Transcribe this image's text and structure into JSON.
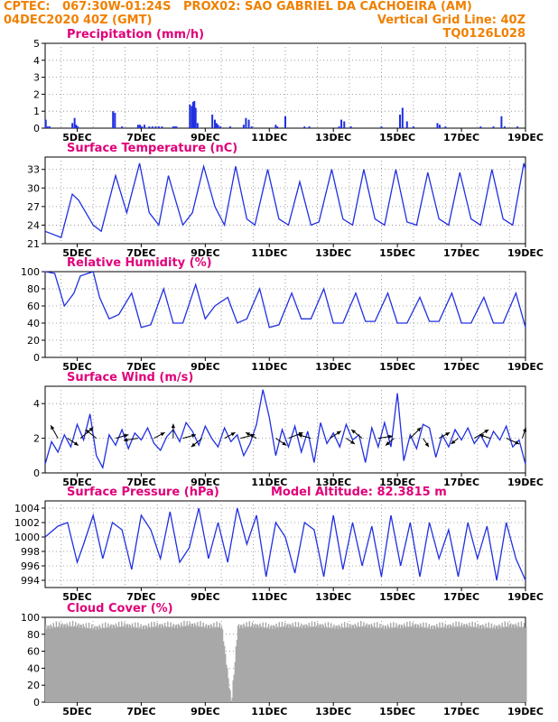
{
  "header": {
    "line1_left": "CPTEC:   067:30W-01:24S   PROX02: SAO GABRIEL DA CACHOEIRA (AM)",
    "line2_left": "04DEC2020 40Z (GMT)",
    "line2_right": "Vertical Grid Line: 40Z",
    "line3_right": "TQ0126L028"
  },
  "colors": {
    "header": "#f08000",
    "title": "#e0007a",
    "line": "#2030e0",
    "bar": "#2030e0",
    "cloud": "#a8a8a8",
    "grid": "#888888"
  },
  "x_tick_labels": [
    "5DEC",
    "7DEC",
    "9DEC",
    "11DEC",
    "13DEC",
    "15DEC",
    "17DEC",
    "19DEC"
  ],
  "chart_data": [
    {
      "type": "bar",
      "title": "Precipitation (mm/h)",
      "ylim": [
        0,
        5
      ],
      "yticks": [
        0,
        1,
        2,
        3,
        4,
        5
      ],
      "x_range_days": [
        4.0,
        19.0
      ],
      "x": [
        4.02,
        4.08,
        4.14,
        4.85,
        4.92,
        4.97,
        5.02,
        6.12,
        6.18,
        6.4,
        6.9,
        6.96,
        7.02,
        7.1,
        7.25,
        7.35,
        7.45,
        7.55,
        7.65,
        8.0,
        8.05,
        8.1,
        8.52,
        8.58,
        8.62,
        8.66,
        8.7,
        8.76,
        9.22,
        9.3,
        9.35,
        9.4,
        9.47,
        9.78,
        10.2,
        10.27,
        10.36,
        10.45,
        11.2,
        11.25,
        11.5,
        12.1,
        12.25,
        13.18,
        13.25,
        13.34,
        13.55,
        14.5,
        15.08,
        15.16,
        15.3,
        15.5,
        16.25,
        16.32,
        16.5,
        17.6,
        18.0,
        18.25,
        18.35,
        18.75
      ],
      "values": [
        0.5,
        0.1,
        0.1,
        0.3,
        0.6,
        0.2,
        0.1,
        1.0,
        0.9,
        0.1,
        0.2,
        0.2,
        0.1,
        0.2,
        0.1,
        0.1,
        0.1,
        0.1,
        0.1,
        0.1,
        0.1,
        0.1,
        1.4,
        1.3,
        1.55,
        1.6,
        1.2,
        0.3,
        0.8,
        0.5,
        0.3,
        0.2,
        0.1,
        0.1,
        0.2,
        0.6,
        0.5,
        0.1,
        0.2,
        0.1,
        0.7,
        0.1,
        0.1,
        0.1,
        0.5,
        0.4,
        0.1,
        0.1,
        0.8,
        1.2,
        0.4,
        0.1,
        0.3,
        0.2,
        0.1,
        0.1,
        0.1,
        0.7,
        0.1,
        0.1
      ]
    },
    {
      "type": "line",
      "title": "Surface Temperature (nC)",
      "ylim": [
        21,
        35
      ],
      "yticks": [
        21,
        24,
        27,
        30,
        33
      ],
      "x_range_days": [
        4.0,
        19.0
      ],
      "x": [
        4.0,
        4.5,
        4.85,
        5.05,
        5.5,
        5.75,
        6.2,
        6.55,
        6.95,
        7.25,
        7.55,
        7.85,
        8.3,
        8.6,
        8.95,
        9.3,
        9.6,
        9.95,
        10.3,
        10.55,
        10.95,
        11.3,
        11.6,
        11.95,
        12.3,
        12.55,
        12.95,
        13.3,
        13.6,
        13.95,
        14.3,
        14.6,
        14.95,
        15.3,
        15.6,
        15.95,
        16.3,
        16.6,
        16.95,
        17.3,
        17.6,
        17.95,
        18.3,
        18.6,
        18.95,
        19.0
      ],
      "values": [
        23.0,
        22.0,
        29.0,
        28.0,
        24.0,
        23.0,
        32.0,
        26.0,
        34.0,
        26.0,
        24.0,
        32.0,
        24.0,
        26.0,
        33.5,
        27.0,
        24.0,
        33.5,
        25.0,
        24.0,
        33.0,
        25.0,
        24.0,
        31.0,
        24.0,
        24.5,
        33.0,
        25.0,
        24.0,
        33.0,
        25.0,
        24.0,
        33.0,
        24.5,
        24.0,
        32.5,
        25.0,
        24.0,
        32.5,
        25.0,
        24.0,
        33.0,
        25.0,
        24.0,
        34.0,
        33.0
      ]
    },
    {
      "type": "line",
      "title": "Relative Humidity (%)",
      "ylim": [
        0,
        100
      ],
      "yticks": [
        0,
        20,
        40,
        60,
        80,
        100
      ],
      "x_range_days": [
        4.0,
        19.0
      ],
      "x": [
        4.0,
        4.3,
        4.6,
        4.9,
        5.1,
        5.5,
        5.7,
        6.0,
        6.3,
        6.7,
        7.0,
        7.3,
        7.7,
        8.0,
        8.3,
        8.7,
        9.0,
        9.3,
        9.7,
        10.0,
        10.3,
        10.7,
        11.0,
        11.3,
        11.7,
        12.0,
        12.3,
        12.7,
        13.0,
        13.3,
        13.7,
        14.0,
        14.3,
        14.7,
        15.0,
        15.3,
        15.7,
        16.0,
        16.3,
        16.7,
        17.0,
        17.3,
        17.7,
        18.0,
        18.3,
        18.7,
        19.0
      ],
      "values": [
        100,
        98,
        60,
        75,
        95,
        100,
        70,
        45,
        50,
        75,
        35,
        38,
        80,
        40,
        40,
        85,
        45,
        60,
        70,
        40,
        45,
        80,
        35,
        38,
        75,
        45,
        45,
        80,
        40,
        40,
        75,
        42,
        42,
        75,
        40,
        40,
        70,
        42,
        42,
        75,
        40,
        40,
        70,
        40,
        40,
        75,
        35
      ]
    },
    {
      "type": "line",
      "title": "Surface Wind (m/s)",
      "ylim": [
        0,
        5
      ],
      "yticks": [
        0,
        2,
        4
      ],
      "x_range_days": [
        4.0,
        19.0
      ],
      "x": [
        4.0,
        4.2,
        4.4,
        4.6,
        4.8,
        5.0,
        5.2,
        5.4,
        5.6,
        5.8,
        6.0,
        6.2,
        6.4,
        6.6,
        6.8,
        7.0,
        7.2,
        7.4,
        7.6,
        7.8,
        8.0,
        8.2,
        8.4,
        8.6,
        8.8,
        9.0,
        9.2,
        9.4,
        9.6,
        9.8,
        10.0,
        10.2,
        10.4,
        10.6,
        10.8,
        11.0,
        11.2,
        11.4,
        11.6,
        11.8,
        12.0,
        12.2,
        12.4,
        12.6,
        12.8,
        13.0,
        13.2,
        13.4,
        13.6,
        13.8,
        14.0,
        14.2,
        14.4,
        14.6,
        14.8,
        15.0,
        15.2,
        15.4,
        15.6,
        15.8,
        16.0,
        16.2,
        16.4,
        16.6,
        16.8,
        17.0,
        17.2,
        17.4,
        17.6,
        17.8,
        18.0,
        18.2,
        18.4,
        18.6,
        18.8,
        19.0
      ],
      "values": [
        0.5,
        1.8,
        1.2,
        2.2,
        1.5,
        2.8,
        1.9,
        3.4,
        1.0,
        0.3,
        2.2,
        1.6,
        2.5,
        1.4,
        2.3,
        1.9,
        2.6,
        1.7,
        1.3,
        2.1,
        2.5,
        1.8,
        2.9,
        2.4,
        1.6,
        2.7,
        2.0,
        1.5,
        2.6,
        1.8,
        2.2,
        1.0,
        1.7,
        2.8,
        4.8,
        3.2,
        1.0,
        2.5,
        1.5,
        2.7,
        1.2,
        2.4,
        0.6,
        2.9,
        1.7,
        2.3,
        1.5,
        2.8,
        1.9,
        2.2,
        0.6,
        2.6,
        1.5,
        2.9,
        1.5,
        4.6,
        0.7,
        2.2,
        1.4,
        2.8,
        2.6,
        0.9,
        2.2,
        1.5,
        2.5,
        1.9,
        2.6,
        1.7,
        2.2,
        1.5,
        2.4,
        1.9,
        2.7,
        1.5,
        1.9,
        0.5
      ]
    },
    {
      "type": "line",
      "title": "Surface Pressure (hPa)",
      "annotation": "Model Altitude: 82.3815 m",
      "ylim": [
        993,
        1005
      ],
      "yticks": [
        994,
        996,
        998,
        1000,
        1002,
        1004
      ],
      "x_range_days": [
        4.0,
        19.0
      ],
      "x": [
        4.0,
        4.4,
        4.7,
        5.0,
        5.2,
        5.5,
        5.8,
        6.1,
        6.4,
        6.7,
        7.0,
        7.3,
        7.6,
        7.9,
        8.2,
        8.5,
        8.8,
        9.1,
        9.4,
        9.7,
        10.0,
        10.3,
        10.6,
        10.9,
        11.2,
        11.5,
        11.8,
        12.1,
        12.4,
        12.7,
        13.0,
        13.3,
        13.6,
        13.9,
        14.2,
        14.5,
        14.8,
        15.1,
        15.4,
        15.7,
        16.0,
        16.3,
        16.6,
        16.9,
        17.2,
        17.5,
        17.8,
        18.1,
        18.4,
        18.7,
        19.0
      ],
      "values": [
        1000.0,
        1001.5,
        1002.0,
        996.5,
        999.0,
        1003.0,
        997.0,
        1002.0,
        1001.0,
        995.5,
        1003.0,
        1001.0,
        997.0,
        1003.5,
        996.5,
        998.5,
        1004.0,
        997.0,
        1002.0,
        996.5,
        1004.0,
        999.0,
        1003.0,
        994.5,
        1002.0,
        1000.0,
        995.0,
        1002.0,
        1001.0,
        994.5,
        1003.0,
        995.5,
        1002.0,
        996.0,
        1001.5,
        994.5,
        1003.0,
        996.0,
        1002.0,
        994.5,
        1002.0,
        997.0,
        1001.0,
        994.5,
        1002.0,
        997.0,
        1001.5,
        994.0,
        1002.0,
        997.0,
        994.0
      ]
    },
    {
      "type": "bar",
      "title": "Cloud Cover (%)",
      "ylim": [
        0,
        100
      ],
      "yticks": [
        0,
        20,
        40,
        60,
        80,
        100
      ],
      "x_range_days": [
        4.0,
        19.0
      ],
      "x": [
        4.0,
        4.5,
        5.0,
        5.5,
        6.0,
        6.5,
        7.0,
        7.5,
        8.0,
        8.5,
        9.0,
        9.5,
        9.8,
        10.0,
        10.5,
        11.0,
        11.5,
        12.0,
        12.5,
        13.0,
        13.5,
        14.0,
        14.5,
        15.0,
        15.5,
        16.0,
        16.5,
        17.0,
        17.5,
        18.0,
        18.5,
        19.0
      ],
      "values": [
        94,
        96,
        96,
        93,
        95,
        96,
        94,
        96,
        95,
        97,
        95,
        95,
        3,
        95,
        96,
        94,
        96,
        95,
        96,
        94,
        95,
        96,
        94,
        95,
        96,
        94,
        95,
        96,
        95,
        94,
        96,
        95
      ]
    }
  ],
  "wind_arrows": {
    "x": [
      4.4,
      4.7,
      5.1,
      5.6,
      6.2,
      6.9,
      7.4,
      8.0,
      8.3,
      8.9,
      9.6,
      10.1,
      10.6,
      11.2,
      11.6,
      12.3,
      12.9,
      13.4,
      13.9,
      14.4,
      14.9,
      15.4,
      15.8,
      16.3,
      16.9,
      17.4,
      17.9,
      18.4,
      18.9
    ],
    "u": [
      -1.0,
      1.5,
      1.8,
      -1.5,
      1.8,
      -2.0,
      1.5,
      0.0,
      1.8,
      -1.5,
      1.5,
      2.0,
      -1.5,
      1.5,
      2.0,
      -1.8,
      1.5,
      1.2,
      -1.5,
      2.0,
      -1.2,
      1.5,
      0.8,
      1.5,
      -1.0,
      2.0,
      -1.5,
      1.8,
      0.5
    ],
    "v": [
      1.8,
      -1.0,
      1.5,
      1.2,
      0.5,
      -0.3,
      0.8,
      2.0,
      0.5,
      -1.2,
      0.8,
      0.5,
      0.8,
      -1.0,
      0.8,
      0.5,
      1.0,
      -0.8,
      1.2,
      0.3,
      -1.0,
      1.5,
      -1.2,
      0.8,
      -0.8,
      1.2,
      0.5,
      -0.8,
      1.5
    ]
  }
}
